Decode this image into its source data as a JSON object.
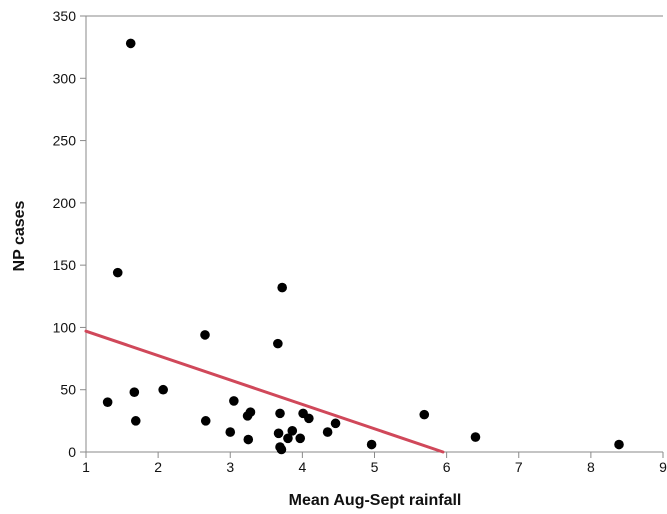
{
  "chart_data": {
    "type": "scatter",
    "xlabel": "Mean Aug-Sept rainfall",
    "ylabel": "NP cases",
    "xlim": [
      1,
      9
    ],
    "ylim": [
      0,
      350
    ],
    "x_ticks": [
      "1",
      "2",
      "3",
      "4",
      "5",
      "6",
      "7",
      "8",
      "9"
    ],
    "y_ticks": [
      "0",
      "50",
      "100",
      "150",
      "200",
      "250",
      "300",
      "350"
    ],
    "grid": false,
    "legend": "none",
    "colors": {
      "points": "#000000",
      "trend_line": "#d0485a",
      "axes": "#8a8a8a",
      "text": "#111111"
    },
    "series": [
      {
        "points": [
          [
            1.62,
            328
          ],
          [
            1.44,
            144
          ],
          [
            3.72,
            132
          ],
          [
            2.65,
            94
          ],
          [
            3.66,
            87
          ],
          [
            1.67,
            48
          ],
          [
            2.07,
            50
          ],
          [
            1.3,
            40
          ],
          [
            1.69,
            25
          ],
          [
            3.05,
            41
          ],
          [
            2.66,
            25
          ],
          [
            3.0,
            16
          ],
          [
            3.28,
            32
          ],
          [
            3.24,
            29
          ],
          [
            3.25,
            10
          ],
          [
            3.69,
            31
          ],
          [
            3.67,
            15
          ],
          [
            3.69,
            4
          ],
          [
            3.71,
            2
          ],
          [
            3.8,
            11
          ],
          [
            3.86,
            17
          ],
          [
            3.97,
            11
          ],
          [
            4.01,
            31
          ],
          [
            4.09,
            27
          ],
          [
            4.35,
            16
          ],
          [
            4.46,
            23
          ],
          [
            4.96,
            6
          ],
          [
            5.69,
            30
          ],
          [
            6.4,
            12
          ],
          [
            8.39,
            6
          ]
        ]
      }
    ],
    "trend_line": {
      "points": [
        [
          1,
          97
        ],
        [
          5.95,
          0
        ]
      ]
    }
  }
}
